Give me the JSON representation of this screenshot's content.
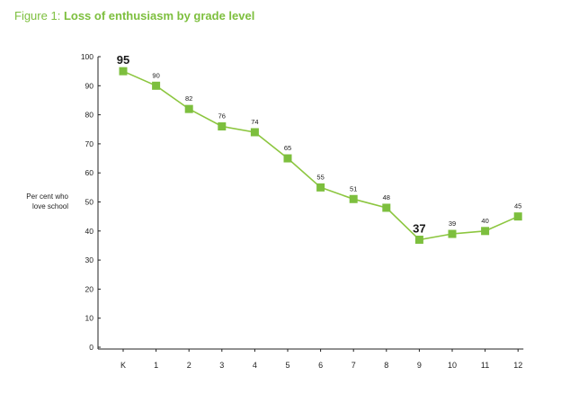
{
  "figure": {
    "prefix": "Figure 1:",
    "title": "Loss of enthusiasm by grade level"
  },
  "chart_data": {
    "type": "line",
    "categories": [
      "K",
      "1",
      "2",
      "3",
      "4",
      "5",
      "6",
      "7",
      "8",
      "9",
      "10",
      "11",
      "12"
    ],
    "values": [
      95,
      90,
      82,
      76,
      74,
      65,
      55,
      51,
      48,
      37,
      39,
      40,
      45
    ],
    "emphasized_labels": [
      "K",
      "9"
    ],
    "ylabel_lines": [
      "Per cent who",
      "love school"
    ],
    "ylim": [
      0,
      100
    ],
    "yticks": [
      0,
      10,
      20,
      30,
      40,
      50,
      60,
      70,
      80,
      90,
      100
    ],
    "grid": false,
    "legend": "none",
    "colors": {
      "line": "#8cc63f",
      "marker": "#7dbf3e",
      "title": "#7dbf3e",
      "axis": "#222222"
    }
  }
}
